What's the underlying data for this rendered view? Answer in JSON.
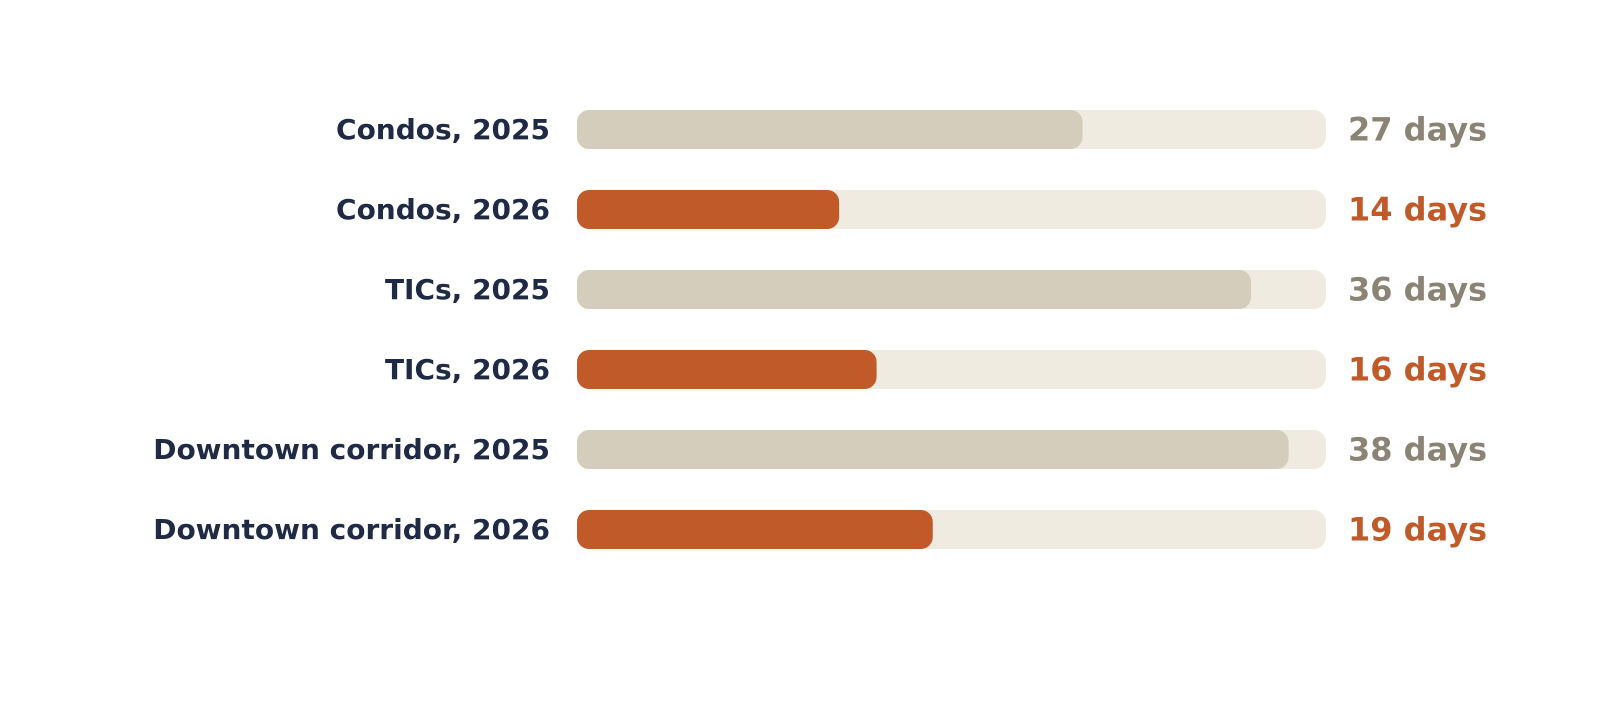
{
  "chart_data": {
    "type": "bar",
    "orientation": "horizontal",
    "categories": [
      "Condos, 2025",
      "Condos, 2026",
      "TICs, 2025",
      "TICs, 2026",
      "Downtown corridor, 2025",
      "Downtown corridor, 2026"
    ],
    "values": [
      27,
      14,
      36,
      16,
      38,
      19
    ],
    "value_labels": [
      "27 days",
      "14 days",
      "36 days",
      "16 days",
      "38 days",
      "19 days"
    ],
    "xlim": [
      0,
      40
    ],
    "grid": false,
    "legend": "none",
    "title": "",
    "xlabel": "",
    "ylabel": ""
  },
  "colors": {
    "label_text": "#1f2a44",
    "track": "#efebe0",
    "bar_2025": "#d5cdbb",
    "bar_2026": "#c05a28",
    "value_2025": "#8b8373",
    "value_2026": "#c05a28"
  }
}
